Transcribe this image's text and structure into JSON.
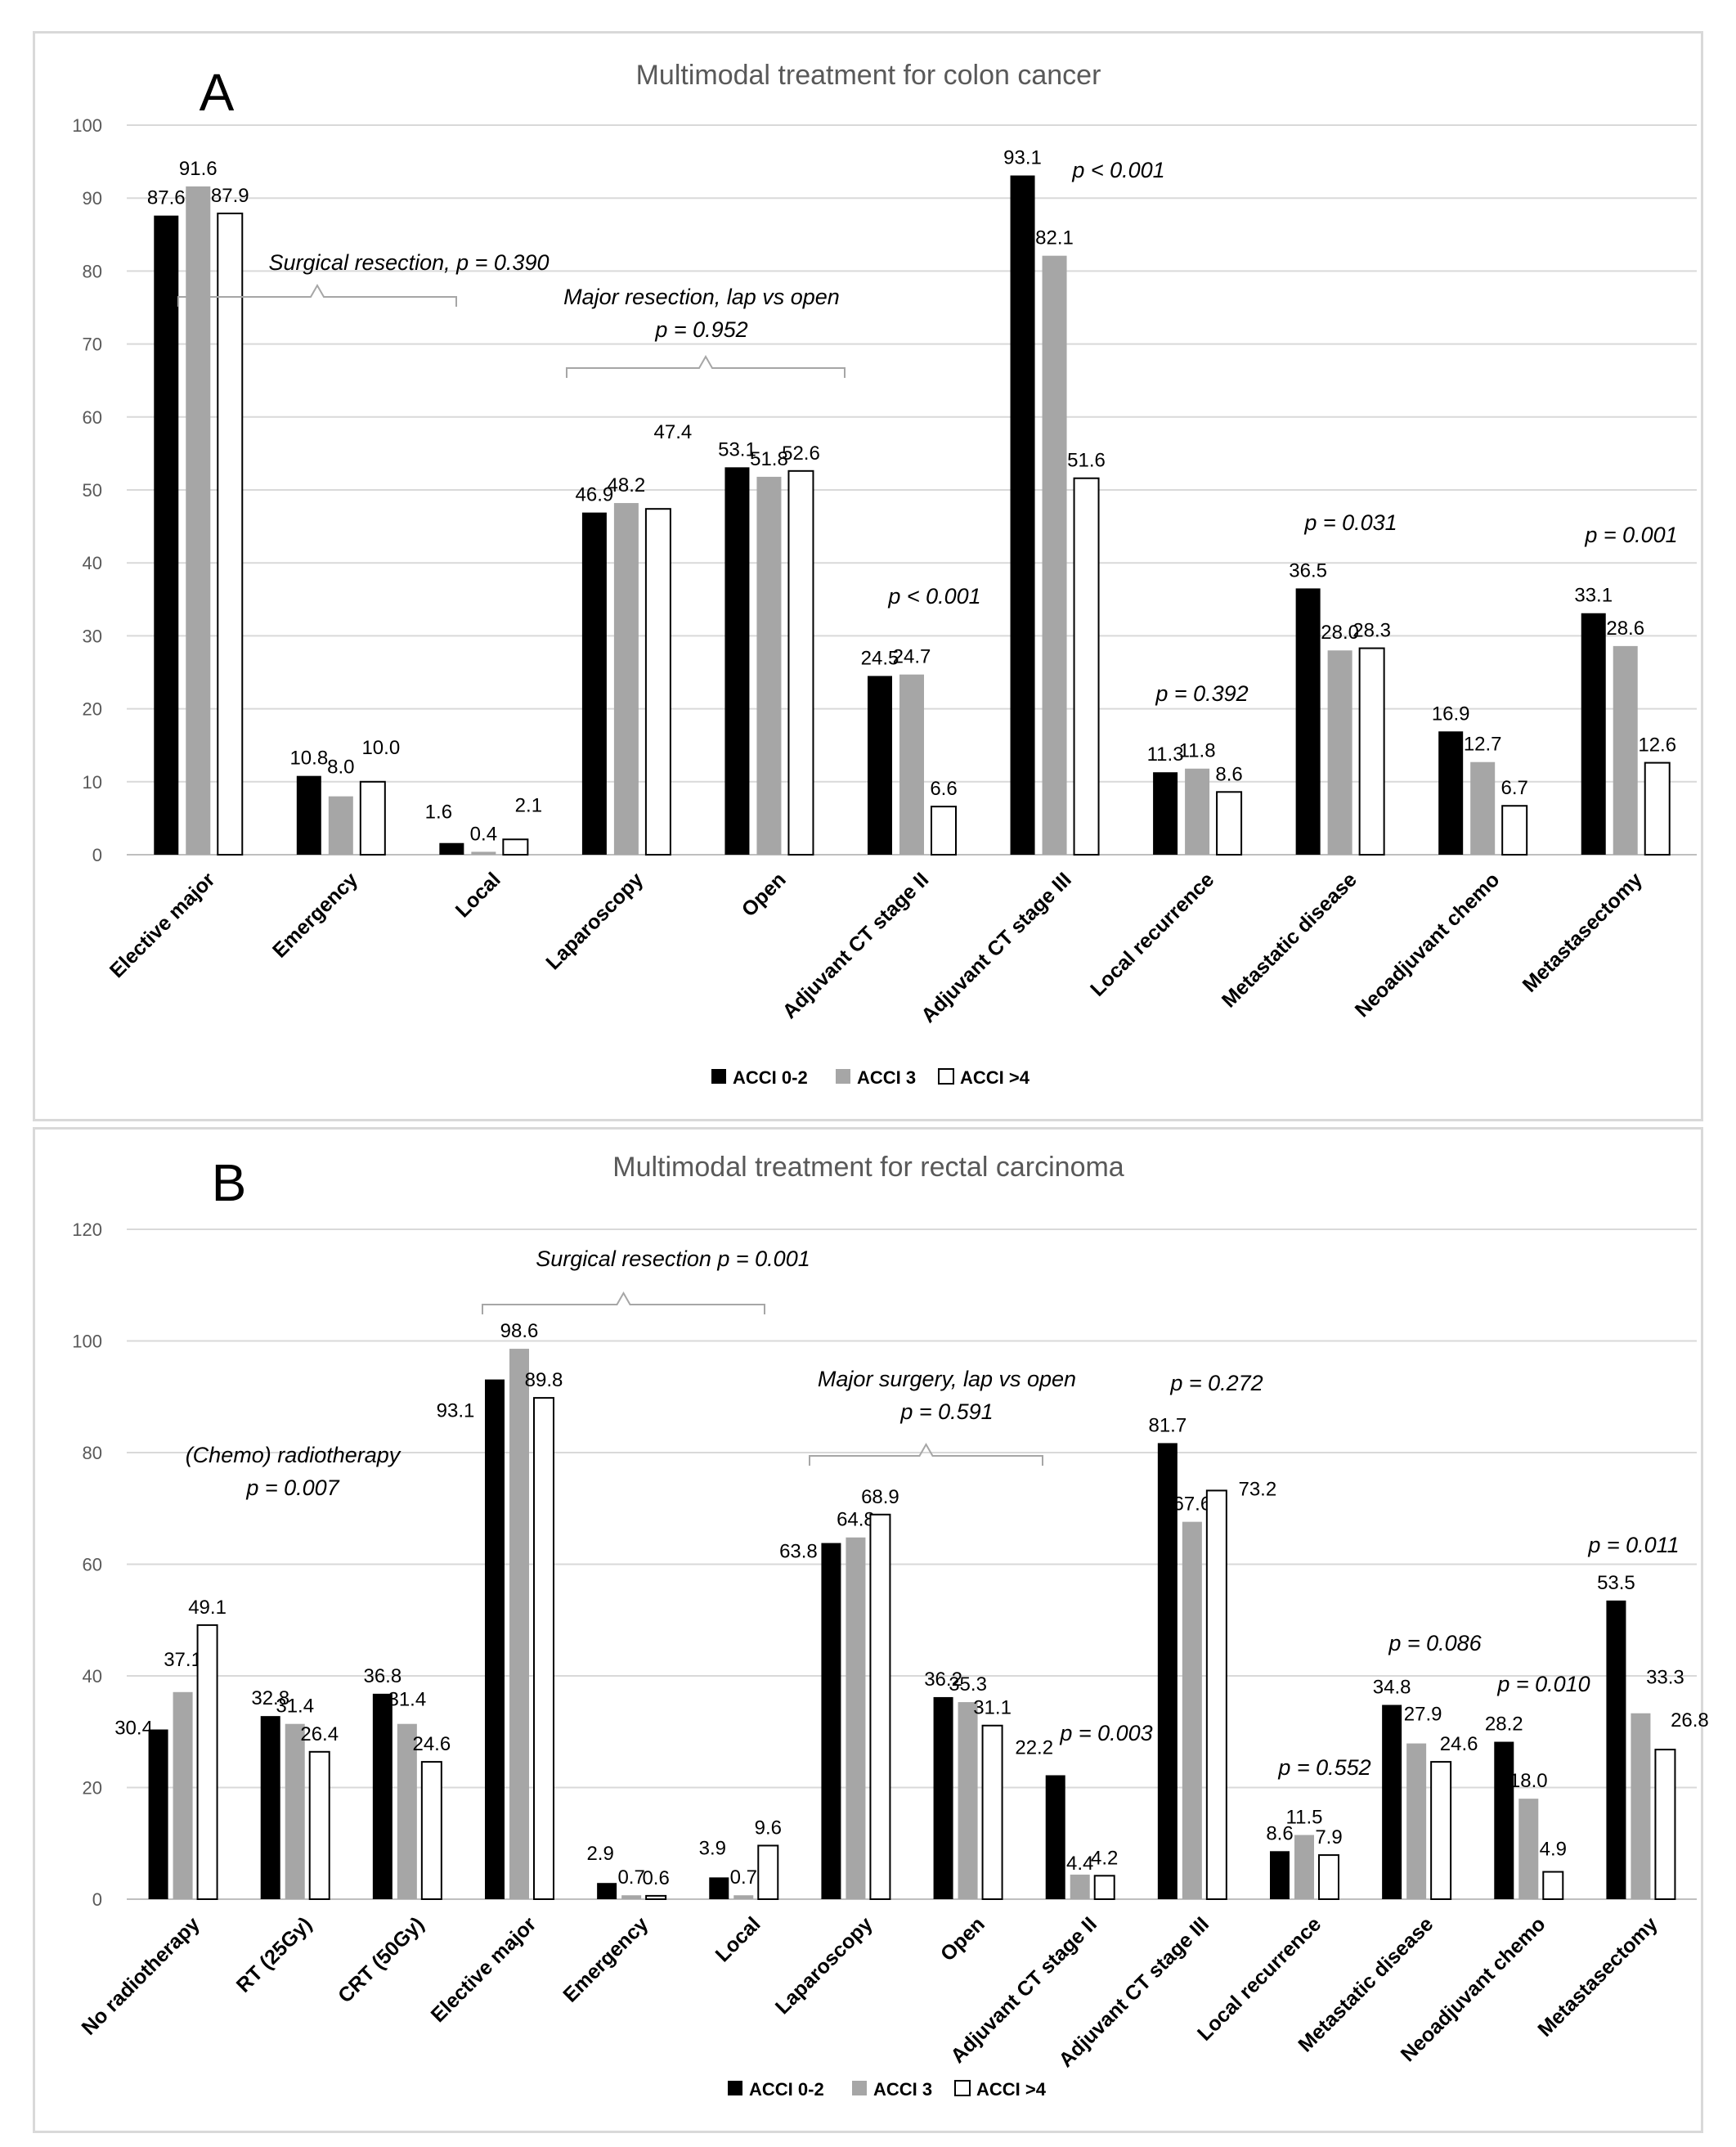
{
  "legend": [
    "ACCI 0-2",
    "ACCI 3",
    "ACCI >4"
  ],
  "colors": {
    "s0": "#000000",
    "s1": "#a6a6a6",
    "s2": "#ffffff"
  },
  "chart_data": [
    {
      "type": "bar",
      "panel": "A",
      "title": "Multimodal treatment for colon cancer",
      "ylim": [
        0,
        100
      ],
      "yticks": [
        0,
        10,
        20,
        30,
        40,
        50,
        60,
        70,
        80,
        90,
        100
      ],
      "categories": [
        "Elective major",
        "Emergency",
        "Local",
        "Laparoscopy",
        "Open",
        "Adjuvant CT stage  II",
        "Adjuvant CT stage III",
        "Local recurrence",
        "Metastatic disease",
        "Neoadjuvant chemo",
        "Metastasectomy"
      ],
      "series": [
        {
          "name": "ACCI 0-2",
          "values": [
            87.6,
            10.8,
            1.6,
            46.9,
            53.1,
            24.5,
            93.1,
            11.3,
            36.5,
            16.9,
            33.1
          ]
        },
        {
          "name": "ACCI 3",
          "values": [
            91.6,
            8.0,
            0.4,
            48.2,
            51.8,
            24.7,
            82.1,
            11.8,
            28.0,
            12.7,
            28.6
          ]
        },
        {
          "name": "ACCI >4",
          "values": [
            87.9,
            10.0,
            2.1,
            47.4,
            52.6,
            6.6,
            51.6,
            8.6,
            28.3,
            6.7,
            12.6
          ]
        }
      ],
      "value_labels": [
        [
          "87.6",
          "10.8",
          "1.6",
          "46.9",
          "53.1",
          "24.5",
          "93.1",
          "11.3",
          "36.5",
          "16.9",
          "33.1"
        ],
        [
          "91.6",
          "8.0",
          "0.4",
          "48.2",
          "51.8",
          "24.7",
          "82.1",
          "11.8",
          "28.0",
          "12.7",
          "28.6"
        ],
        [
          "87.9",
          "10.0",
          "2.1",
          "47.4",
          "52.6",
          "6.6",
          "51.6",
          "8.6",
          "28.3",
          "6.7",
          "12.6"
        ]
      ],
      "annotations": [
        {
          "lines": [
            "Surgical resection, p = 0.390"
          ]
        },
        {
          "lines": [
            "Major resection, lap vs open",
            "p = 0.952"
          ]
        },
        {
          "lines": [
            "p < 0.001"
          ]
        },
        {
          "lines": [
            "p < 0.001"
          ]
        },
        {
          "lines": [
            "p = 0.392"
          ]
        },
        {
          "lines": [
            "p = 0.031"
          ]
        },
        {
          "lines": [
            "p = 0.001"
          ]
        }
      ]
    },
    {
      "type": "bar",
      "panel": "B",
      "title": "Multimodal treatment for rectal carcinoma",
      "ylim": [
        0,
        120
      ],
      "yticks": [
        0,
        20,
        40,
        60,
        80,
        100,
        120
      ],
      "categories": [
        "No radiotherapy",
        "RT (25Gy)",
        "CRT (50Gy)",
        "Elective major",
        "Emergency",
        "Local",
        "Laparoscopy",
        "Open",
        "Adjuvant CT stage  II",
        "Adjuvant CT stage III",
        "Local recurrence",
        "Metastatic disease",
        "Neoadjuvant chemo",
        "Metastasectomy"
      ],
      "series": [
        {
          "name": "ACCI 0-2",
          "values": [
            30.4,
            32.8,
            36.8,
            93.1,
            2.9,
            3.9,
            63.8,
            36.2,
            22.2,
            81.7,
            8.6,
            34.8,
            28.2,
            53.5
          ]
        },
        {
          "name": "ACCI 3",
          "values": [
            37.1,
            31.4,
            31.4,
            98.6,
            0.7,
            0.7,
            64.8,
            35.3,
            4.4,
            67.6,
            11.5,
            27.9,
            18.0,
            33.3
          ]
        },
        {
          "name": "ACCI >4",
          "values": [
            49.1,
            26.4,
            24.6,
            89.8,
            0.6,
            9.6,
            68.9,
            31.1,
            4.2,
            73.2,
            7.9,
            24.6,
            4.9,
            26.8
          ]
        }
      ],
      "value_labels": [
        [
          "30.4",
          "32.8",
          "36.8",
          "93.1",
          "2.9",
          "3.9",
          "63.8",
          "36.2",
          "22.2",
          "81.7",
          "8.6",
          "34.8",
          "28.2",
          "53.5"
        ],
        [
          "37.1",
          "31.4",
          "31.4",
          "98.6",
          "0.7",
          "0.7",
          "64.8",
          "35.3",
          "4.4",
          "67.6",
          "11.5",
          "27.9",
          "18.0",
          "33.3"
        ],
        [
          "49.1",
          "26.4",
          "24.6",
          "89.8",
          "0.6",
          "9.6",
          "68.9",
          "31.1",
          "4.2",
          "73.2",
          "7.9",
          "24.6",
          "4.9",
          "26.8"
        ]
      ],
      "annotations": [
        {
          "lines": [
            "(Chemo) radiotherapy",
            "p = 0.007"
          ]
        },
        {
          "lines": [
            "Surgical resection  p = 0.001"
          ]
        },
        {
          "lines": [
            "Major surgery, lap vs open",
            "p = 0.591"
          ]
        },
        {
          "lines": [
            "p = 0.003"
          ]
        },
        {
          "lines": [
            "p = 0.272"
          ]
        },
        {
          "lines": [
            "p = 0.552"
          ]
        },
        {
          "lines": [
            "p = 0.086"
          ]
        },
        {
          "lines": [
            "p = 0.010"
          ]
        },
        {
          "lines": [
            "p = 0.011"
          ]
        }
      ]
    }
  ]
}
